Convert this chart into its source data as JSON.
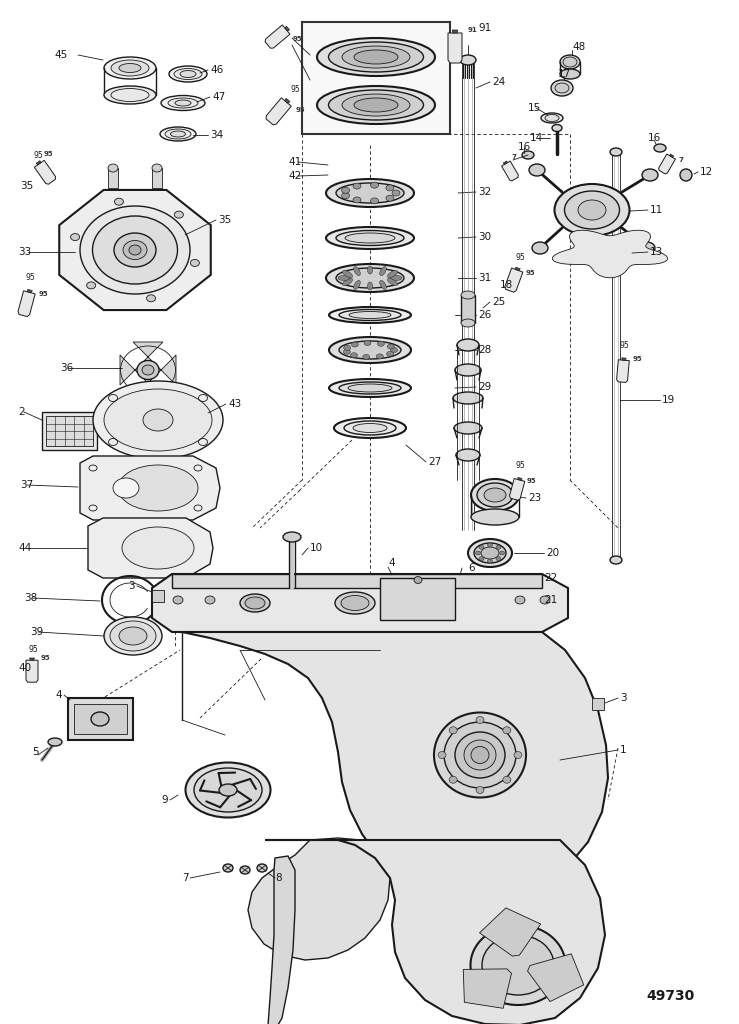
{
  "catalog_number": "49730",
  "bg": "#ffffff",
  "lc": "#1a1a1a",
  "figsize": [
    7.39,
    10.24
  ],
  "dpi": 100
}
